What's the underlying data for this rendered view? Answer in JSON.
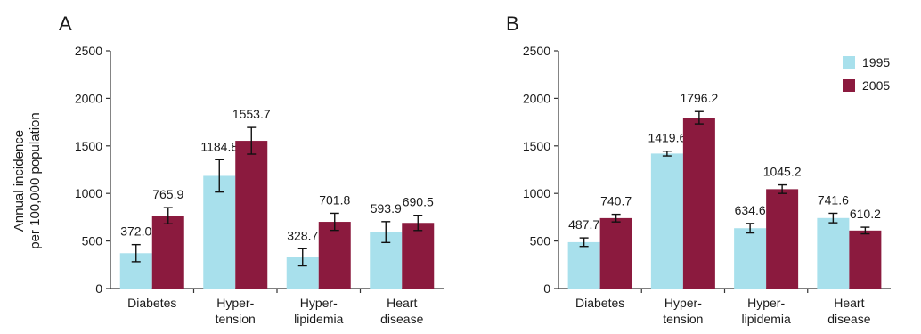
{
  "figure": {
    "ylabel_line1": "Annual incidence",
    "ylabel_line2": "per 100,000 population"
  },
  "colors": {
    "s1995": "#a8e0ec",
    "s2005": "#8b1a3e",
    "axis": "#333333",
    "errorbar": "#111111"
  },
  "chart_data": [
    {
      "type": "bar",
      "panel_label": "A",
      "categories": [
        [
          "Diabetes"
        ],
        [
          "Hyper-",
          "tension"
        ],
        [
          "Hyper-",
          "lipidemia"
        ],
        [
          "Heart",
          "disease"
        ]
      ],
      "ylim": [
        0,
        2500
      ],
      "yticks": [
        0,
        500,
        1000,
        1500,
        2000,
        2500
      ],
      "grid": false,
      "legend": null,
      "series": [
        {
          "name": "1995",
          "color": "#a8e0ec",
          "values": [
            372.0,
            1184.8,
            328.7,
            593.9
          ],
          "labels": [
            "372.0",
            "1184.8",
            "328.7",
            "593.9"
          ],
          "err": [
            90,
            170,
            90,
            110
          ]
        },
        {
          "name": "2005",
          "color": "#8b1a3e",
          "values": [
            765.9,
            1553.7,
            701.8,
            690.5
          ],
          "labels": [
            "765.9",
            "1553.7",
            "701.8",
            "690.5"
          ],
          "err": [
            85,
            140,
            90,
            80
          ]
        }
      ]
    },
    {
      "type": "bar",
      "panel_label": "B",
      "categories": [
        [
          "Diabetes"
        ],
        [
          "Hyper-",
          "tension"
        ],
        [
          "Hyper-",
          "lipidemia"
        ],
        [
          "Heart",
          "disease"
        ]
      ],
      "ylim": [
        0,
        2500
      ],
      "yticks": [
        0,
        500,
        1000,
        1500,
        2000,
        2500
      ],
      "grid": false,
      "legend": "top-right",
      "series": [
        {
          "name": "1995",
          "color": "#a8e0ec",
          "values": [
            487.7,
            1419.6,
            634.6,
            741.6
          ],
          "labels": [
            "487.7",
            "1419.6",
            "634.6",
            "741.6"
          ],
          "err": [
            45,
            25,
            50,
            50
          ]
        },
        {
          "name": "2005",
          "color": "#8b1a3e",
          "values": [
            740.7,
            1796.2,
            1045.2,
            610.2
          ],
          "labels": [
            "740.7",
            "1796.2",
            "1045.2",
            "610.2"
          ],
          "err": [
            40,
            65,
            45,
            35
          ]
        }
      ]
    }
  ]
}
